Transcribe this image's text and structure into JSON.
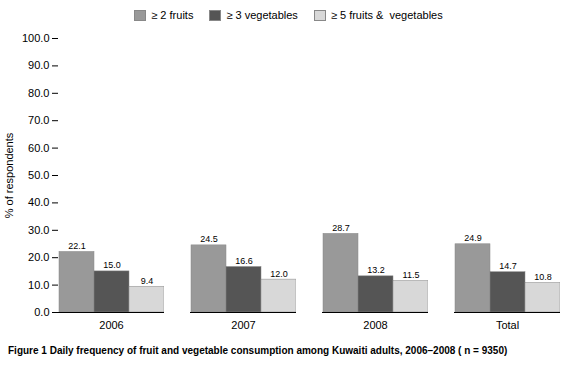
{
  "chart_data": {
    "type": "bar",
    "categories": [
      "2006",
      "2007",
      "2008",
      "Total"
    ],
    "series": [
      {
        "name": "≥ 2 fruits",
        "color": "#999999",
        "values": [
          22.1,
          24.5,
          28.7,
          24.9
        ]
      },
      {
        "name": "≥ 3 vegetables",
        "color": "#555555",
        "values": [
          15.0,
          16.6,
          13.2,
          14.7
        ],
        "value_labels": [
          "15.0",
          "16.6",
          "13.2",
          "14.7"
        ]
      },
      {
        "name": "≥ 5 fruits &  vegetables",
        "color": "#d8d8d8",
        "values": [
          9.4,
          12.0,
          11.5,
          10.8
        ],
        "value_labels": [
          "9.4",
          "12.0",
          "11.5",
          "10.8"
        ]
      }
    ],
    "ylabel": "% of respondents",
    "caption": "Figure 1 Daily frequency of fruit and vegetable consumption among Kuwaiti adults, 2006–2008 ( n = 9350)",
    "ylim": [
      0,
      100
    ],
    "yticks": [
      {
        "value": 0,
        "label": "0.0"
      },
      {
        "value": 10,
        "label": "10.0"
      },
      {
        "value": 20,
        "label": "20.0"
      },
      {
        "value": 30,
        "label": "30.0"
      },
      {
        "value": 40,
        "label": "40.0"
      },
      {
        "value": 50,
        "label": "50.0"
      },
      {
        "value": 60,
        "label": "60.0"
      },
      {
        "value": 70,
        "label": "70.0"
      },
      {
        "value": 80,
        "label": "80.0"
      },
      {
        "value": 90,
        "label": "90.0"
      },
      {
        "value": 100,
        "label": "100.0"
      }
    ],
    "grid": false,
    "legend": "upper center",
    "data_labels": true
  }
}
